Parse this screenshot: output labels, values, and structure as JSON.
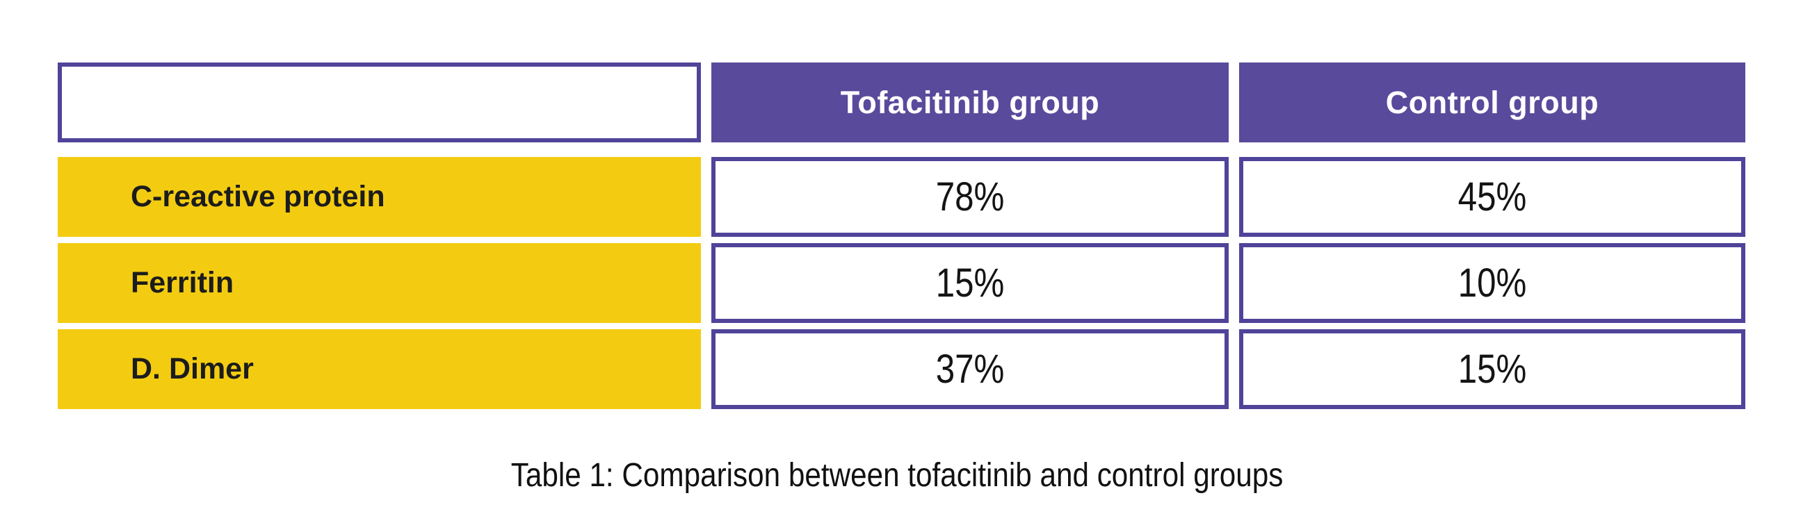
{
  "figure": {
    "caption": "Table 1: Comparison between tofacitinib and control groups"
  },
  "table": {
    "headers": [
      "",
      "Tofacitinib group",
      "Control group"
    ],
    "rows": [
      {
        "label": "C-reactive protein",
        "values": [
          "78%",
          "45%"
        ]
      },
      {
        "label": "Ferritin",
        "values": [
          "15%",
          "10%"
        ]
      },
      {
        "label": "D. Dimer",
        "values": [
          "37%",
          "15%"
        ]
      }
    ]
  },
  "colors": {
    "header_fill_purple": "#5a4a9c",
    "cell_border_purple": "#4f4499",
    "row_label_yellow": "#f3cc12",
    "header_text": "#ffffff",
    "body_text": "#141414",
    "background": "#ffffff"
  },
  "chart_data": {
    "type": "table",
    "title": "Table 1: Comparison between tofacitinib and control groups",
    "columns": [
      "",
      "Tofacitinib group",
      "Control group"
    ],
    "categories": [
      "C-reactive protein",
      "Ferritin",
      "D. Dimer"
    ],
    "series": [
      {
        "name": "Tofacitinib group",
        "values": [
          78,
          15,
          37
        ]
      },
      {
        "name": "Control group",
        "values": [
          45,
          10,
          15
        ]
      }
    ],
    "rows": [
      [
        "C-reactive protein",
        "78%",
        "45%"
      ],
      [
        "Ferritin",
        "15%",
        "10%"
      ],
      [
        "D. Dimer",
        "37%",
        "15%"
      ]
    ],
    "unit": "%"
  }
}
